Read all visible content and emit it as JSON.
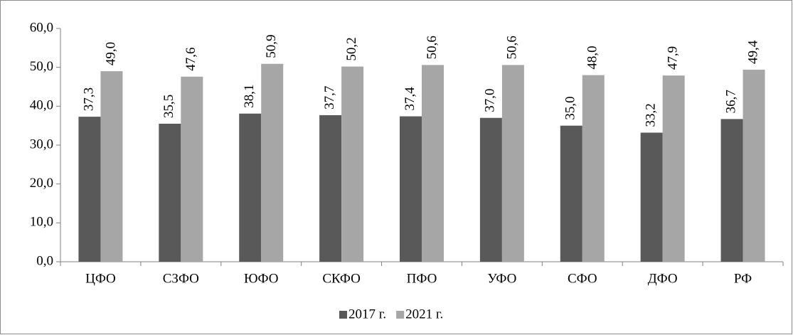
{
  "chart_data": {
    "type": "bar",
    "categories": [
      "ЦФО",
      "СЗФО",
      "ЮФО",
      "СКФО",
      "ПФО",
      "УФО",
      "СФО",
      "ДФО",
      "РФ"
    ],
    "series": [
      {
        "name": "2017 г.",
        "color": "#595959",
        "values": [
          37.3,
          35.5,
          38.1,
          37.7,
          37.4,
          37.0,
          35.0,
          33.2,
          36.7
        ],
        "value_labels": [
          "37,3",
          "35,5",
          "38,1",
          "37,7",
          "37,4",
          "37,0",
          "35,0",
          "33,2",
          "36,7"
        ]
      },
      {
        "name": "2021 г.",
        "color": "#a6a6a6",
        "values": [
          49.0,
          47.6,
          50.9,
          50.2,
          50.6,
          50.6,
          48.0,
          47.9,
          49.4
        ],
        "value_labels": [
          "49,0",
          "47,6",
          "50,9",
          "50,2",
          "50,6",
          "50,6",
          "48,0",
          "47,9",
          "49,4"
        ]
      }
    ],
    "ylim": [
      0,
      60
    ],
    "yticks": [
      {
        "value": 0,
        "label": "0,0"
      },
      {
        "value": 10,
        "label": "10,0"
      },
      {
        "value": 20,
        "label": "20,0"
      },
      {
        "value": 30,
        "label": "30,0"
      },
      {
        "value": 40,
        "label": "40,0"
      },
      {
        "value": 50,
        "label": "50,0"
      },
      {
        "value": 60,
        "label": "60,0"
      }
    ],
    "legend": "bottom"
  }
}
